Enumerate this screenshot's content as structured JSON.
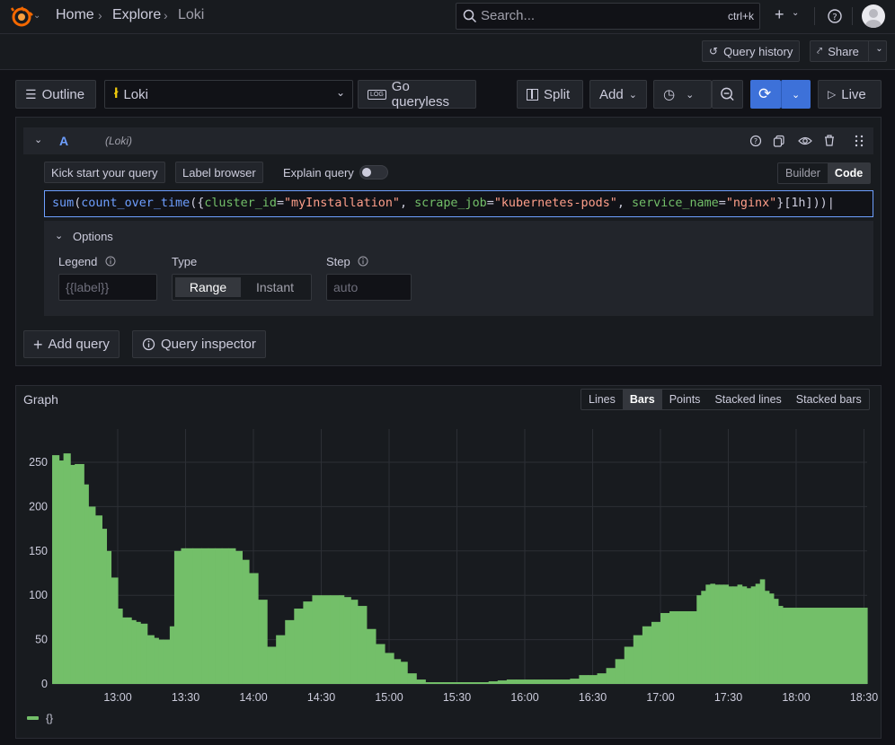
{
  "breadcrumb": [
    "Home",
    "Explore",
    "Loki"
  ],
  "search": {
    "placeholder": "Search...",
    "shortcut": "ctrl+k"
  },
  "subbar": {
    "query_history": "Query history",
    "share": "Share"
  },
  "toolbar": {
    "outline": "Outline",
    "datasource": "Loki",
    "go_queryless": "Go queryless",
    "split": "Split",
    "add": "Add",
    "live": "Live"
  },
  "query": {
    "ref_id": "A",
    "datasource_label": "(Loki)",
    "kick_start": "Kick start your query",
    "label_browser": "Label browser",
    "explain_query": "Explain query",
    "mode_builder": "Builder",
    "mode_code": "Code",
    "expr_tokens": [
      {
        "t": "sum",
        "c": "#6e9fff"
      },
      {
        "t": "(",
        "c": "#ccccdc"
      },
      {
        "t": "count_over_time",
        "c": "#6e9fff"
      },
      {
        "t": "({",
        "c": "#ccccdc"
      },
      {
        "t": "cluster_id",
        "c": "#73bf69"
      },
      {
        "t": "=",
        "c": "#ccccdc"
      },
      {
        "t": "\"myInstallation\"",
        "c": "#ff9f8a"
      },
      {
        "t": ", ",
        "c": "#ccccdc"
      },
      {
        "t": "scrape_job",
        "c": "#73bf69"
      },
      {
        "t": "=",
        "c": "#ccccdc"
      },
      {
        "t": "\"kubernetes-pods\"",
        "c": "#ff9f8a"
      },
      {
        "t": ", ",
        "c": "#ccccdc"
      },
      {
        "t": "service_name",
        "c": "#73bf69"
      },
      {
        "t": "=",
        "c": "#ccccdc"
      },
      {
        "t": "\"nginx\"",
        "c": "#ff9f8a"
      },
      {
        "t": "}",
        "c": "#ccccdc"
      },
      {
        "t": "[1h]",
        "c": "#ccccdc"
      },
      {
        "t": "))",
        "c": "#ccccdc"
      }
    ],
    "options": {
      "title": "Options",
      "legend_label": "Legend",
      "legend_placeholder": "{{label}}",
      "type_label": "Type",
      "type_range": "Range",
      "type_instant": "Instant",
      "step_label": "Step",
      "step_placeholder": "auto"
    },
    "add_query": "Add query",
    "query_inspector": "Query inspector"
  },
  "graph": {
    "title": "Graph",
    "modes": [
      "Lines",
      "Bars",
      "Points",
      "Stacked lines",
      "Stacked bars"
    ],
    "active_mode": "Bars",
    "legend": "{}"
  },
  "chart_data": {
    "type": "bar",
    "title": "Graph",
    "color": "#73bf69",
    "ylim": [
      0,
      270
    ],
    "y_ticks": [
      0,
      50,
      100,
      150,
      200,
      250
    ],
    "x_ticks": [
      "13:00",
      "13:30",
      "14:00",
      "14:30",
      "15:00",
      "15:30",
      "16:00",
      "16:30",
      "17:00",
      "17:30",
      "18:00",
      "18:30"
    ],
    "x_minutes_from_1300": [
      -29,
      -26,
      -24,
      -21,
      -19,
      -15,
      -13,
      -10,
      -7,
      -5,
      -3,
      0,
      2,
      4,
      6,
      8,
      10,
      13,
      16,
      18,
      20,
      23,
      25,
      28,
      30,
      33,
      37,
      40,
      43,
      46,
      49,
      52,
      55,
      58,
      62,
      66,
      70,
      74,
      78,
      82,
      86,
      90,
      94,
      98,
      100,
      103,
      106,
      110,
      114,
      118,
      122,
      125,
      128,
      132,
      136,
      140,
      144,
      148,
      152,
      156,
      160,
      164,
      168,
      172,
      176,
      180,
      184,
      188,
      192,
      196,
      200,
      204,
      208,
      212,
      216,
      220,
      224,
      228,
      232,
      236,
      240,
      244,
      248,
      252,
      256,
      258,
      260,
      262,
      264,
      266,
      268,
      270,
      272,
      274,
      276,
      278,
      280,
      282,
      284,
      286,
      288,
      290,
      292,
      294
    ],
    "values": [
      258,
      252,
      260,
      247,
      248,
      225,
      200,
      190,
      175,
      150,
      120,
      85,
      75,
      75,
      72,
      70,
      68,
      55,
      52,
      50,
      50,
      65,
      150,
      153,
      153,
      153,
      153,
      153,
      153,
      153,
      153,
      150,
      140,
      125,
      95,
      42,
      55,
      72,
      85,
      93,
      100,
      100,
      100,
      100,
      98,
      95,
      88,
      62,
      45,
      35,
      28,
      25,
      12,
      5,
      2,
      2,
      2,
      2,
      2,
      2,
      2,
      3,
      4,
      5,
      5,
      5,
      5,
      5,
      5,
      5,
      6,
      10,
      10,
      12,
      18,
      28,
      42,
      55,
      65,
      70,
      80,
      82,
      82,
      82,
      100,
      105,
      112,
      113,
      112,
      112,
      112,
      110,
      110,
      112,
      110,
      108,
      110,
      113,
      118,
      105,
      102,
      96,
      88,
      86
    ]
  }
}
